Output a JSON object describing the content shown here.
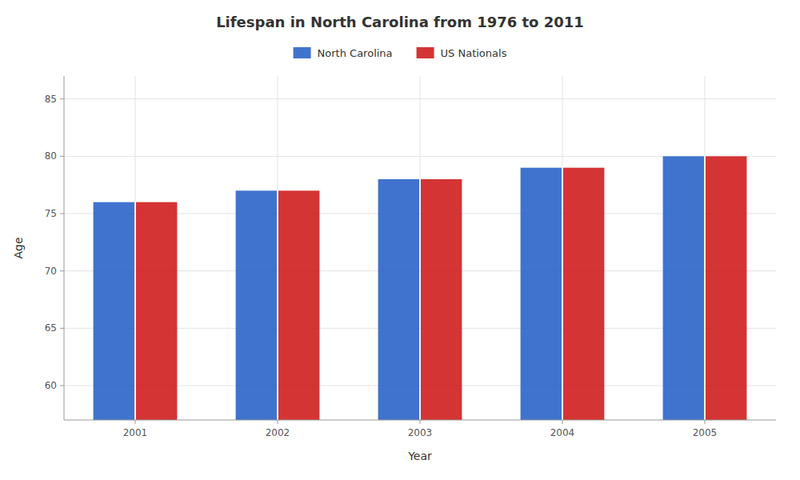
{
  "chart_data": {
    "type": "bar",
    "title": "Lifespan in North Carolina from 1976 to 2011",
    "xlabel": "Year",
    "ylabel": "Age",
    "categories": [
      "2001",
      "2002",
      "2003",
      "2004",
      "2005"
    ],
    "series": [
      {
        "name": "North Carolina",
        "color": "#1f5bc4",
        "values": [
          76,
          77,
          78,
          79,
          80
        ]
      },
      {
        "name": "US Nationals",
        "color": "#cc1111",
        "values": [
          76,
          77,
          78,
          79,
          80
        ]
      }
    ],
    "ylim": [
      57,
      87
    ],
    "yticks": [
      60,
      65,
      70,
      75,
      80,
      85
    ],
    "grid": true,
    "legend": "top"
  }
}
